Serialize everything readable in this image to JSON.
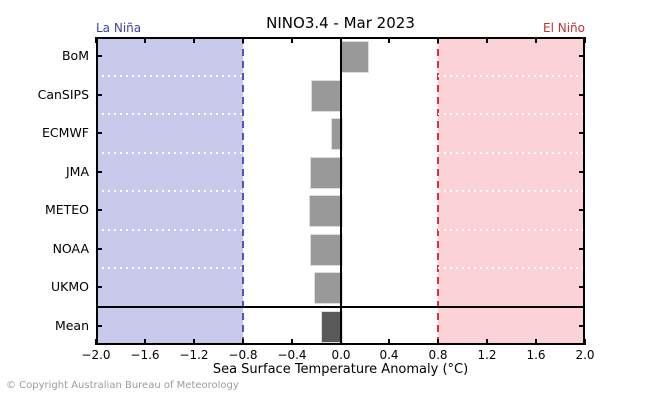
{
  "header": {
    "left_label": "La Niña",
    "left_label_color": "#4040a8",
    "right_label": "El Niño",
    "right_label_color": "#c23434"
  },
  "footer": {
    "text": "© Copyright Australian Bureau of Meteorology"
  },
  "chart_data": {
    "type": "bar",
    "orientation": "horizontal",
    "title": "NINO3.4 - Mar 2023",
    "xlabel": "Sea Surface Temperature Anomaly (°C)",
    "categories": [
      "BoM",
      "CanSIPS",
      "ECMWF",
      "JMA",
      "METEO",
      "NOAA",
      "UKMO",
      "Mean"
    ],
    "values": [
      0.21,
      -0.24,
      -0.08,
      -0.25,
      -0.26,
      -0.25,
      -0.22,
      -0.16
    ],
    "xlim": [
      -2.0,
      2.0
    ],
    "xtick_values": [
      -2.0,
      -1.6,
      -1.2,
      -0.8,
      -0.4,
      0.0,
      0.4,
      0.8,
      1.2,
      1.6,
      2.0
    ],
    "xtick_labels": [
      "−2.0",
      "−1.6",
      "−1.2",
      "−0.8",
      "−0.4",
      "0.0",
      "0.4",
      "0.8",
      "1.2",
      "1.6",
      "2.0"
    ],
    "bands": [
      {
        "name": "la-nina-band",
        "label": "La Niña",
        "from": -2.0,
        "to": -0.8,
        "fill": "#c9c9ec",
        "edge_color": "#5252b8",
        "edge_at": -0.8
      },
      {
        "name": "el-nino-band",
        "label": "El Niño",
        "from": 0.8,
        "to": 2.0,
        "fill": "#fbd3d7",
        "edge_color": "#cc3a3a",
        "edge_at": 0.8
      }
    ],
    "bar_color": "#999999",
    "mean_bar_color": "#595959",
    "mean_category": "Mean",
    "separator_after_index": 6,
    "row_grid_style": "white-dotted",
    "legend": "none"
  }
}
